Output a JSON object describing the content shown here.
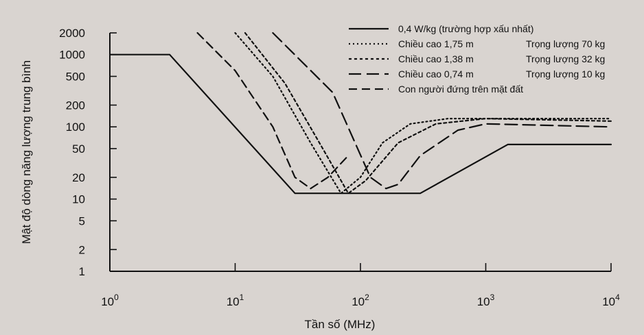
{
  "chart_data": {
    "type": "line",
    "xlabel": "Tần số (MHz)",
    "ylabel": "Mật độ dòng năng lượng trung bình",
    "x_scale": "log",
    "y_scale": "log",
    "xlim": [
      1,
      10000
    ],
    "ylim": [
      1,
      2000
    ],
    "x_ticks": [
      {
        "value": 1,
        "base": "10",
        "exp": "0"
      },
      {
        "value": 10,
        "base": "10",
        "exp": "1"
      },
      {
        "value": 100,
        "base": "10",
        "exp": "2"
      },
      {
        "value": 1000,
        "base": "10",
        "exp": "3"
      },
      {
        "value": 10000,
        "base": "10",
        "exp": "4"
      }
    ],
    "y_ticks": [
      {
        "value": 2000,
        "label": "2000"
      },
      {
        "value": 1000,
        "label": "1000"
      },
      {
        "value": 500,
        "label": "500"
      },
      {
        "value": 200,
        "label": "200"
      },
      {
        "value": 100,
        "label": "100"
      },
      {
        "value": 50,
        "label": "50"
      },
      {
        "value": 20,
        "label": "20"
      },
      {
        "value": 10,
        "label": "10"
      },
      {
        "value": 5,
        "label": "5"
      },
      {
        "value": 2,
        "label": "2"
      },
      {
        "value": 1,
        "label": "1"
      }
    ],
    "legend_position": "top-right",
    "grid": false,
    "series": [
      {
        "name": "0,4 W/kg (trường hợp xấu nhất)",
        "style": "solid",
        "points": [
          [
            1,
            1000
          ],
          [
            3,
            1000
          ],
          [
            30,
            12
          ],
          [
            300,
            12
          ],
          [
            1500,
            57
          ],
          [
            10000,
            57
          ]
        ]
      },
      {
        "name": "Chiều cao 1,75 m",
        "weight": "Trọng lượng 70 kg",
        "style": "dotted",
        "points": [
          [
            10,
            2000
          ],
          [
            20,
            500
          ],
          [
            40,
            60
          ],
          [
            70,
            12
          ],
          [
            100,
            20
          ],
          [
            150,
            60
          ],
          [
            250,
            110
          ],
          [
            500,
            130
          ],
          [
            1000,
            130
          ],
          [
            10000,
            130
          ]
        ]
      },
      {
        "name": "Chiều cao 1,38 m",
        "weight": "Trọng lượng 32 kg",
        "style": "short-dash",
        "points": [
          [
            12,
            2000
          ],
          [
            25,
            400
          ],
          [
            50,
            50
          ],
          [
            80,
            12
          ],
          [
            110,
            18
          ],
          [
            200,
            60
          ],
          [
            400,
            110
          ],
          [
            1000,
            130
          ],
          [
            10000,
            120
          ]
        ]
      },
      {
        "name": "Chiều cao 0,74 m",
        "weight": "Trọng lượng 10 kg",
        "style": "long-dash",
        "points": [
          [
            20,
            2000
          ],
          [
            60,
            300
          ],
          [
            120,
            20
          ],
          [
            160,
            14
          ],
          [
            200,
            16
          ],
          [
            300,
            40
          ],
          [
            600,
            90
          ],
          [
            1000,
            110
          ],
          [
            10000,
            100
          ]
        ]
      },
      {
        "name": "Con người đứng trên mặt đất",
        "style": "medium-dash",
        "points": [
          [
            5,
            2000
          ],
          [
            10,
            600
          ],
          [
            20,
            100
          ],
          [
            30,
            20
          ],
          [
            40,
            14
          ],
          [
            55,
            20
          ],
          [
            80,
            40
          ]
        ]
      }
    ]
  }
}
